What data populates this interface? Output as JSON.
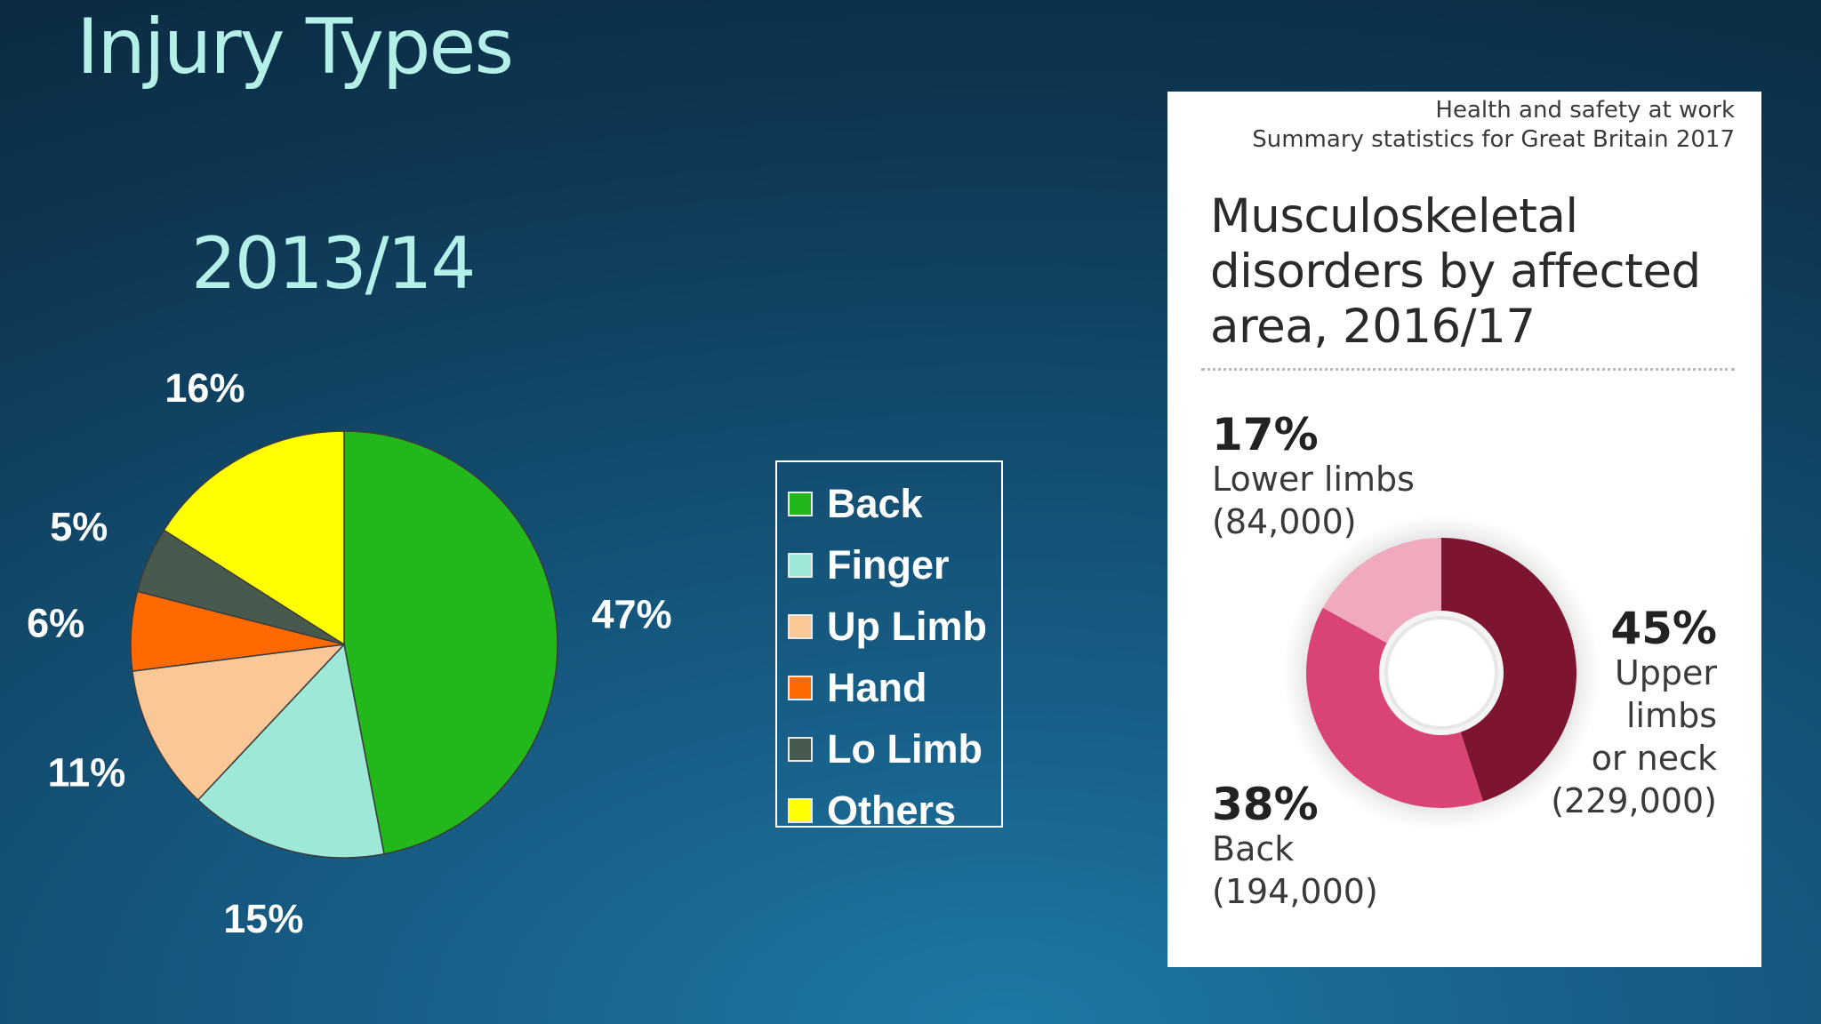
{
  "slide": {
    "title": "Injury Types"
  },
  "chart_data": [
    {
      "type": "pie",
      "title": "2013/14",
      "categories": [
        "Back",
        "Finger",
        "Up Limb",
        "Hand",
        "Lo Limb",
        "Others"
      ],
      "values": [
        47,
        15,
        11,
        6,
        5,
        16
      ],
      "value_labels": [
        "47%",
        "15%",
        "11%",
        "6%",
        "5%",
        "16%"
      ],
      "colors": [
        "#22b71a",
        "#9de8d6",
        "#fac796",
        "#ff6a00",
        "#485a4d",
        "#ffff00"
      ],
      "legend": "right"
    },
    {
      "type": "pie",
      "subtype": "donut",
      "source_lines": [
        "Health and safety at work",
        "Summary statistics for Great Britain 2017"
      ],
      "title": "Musculoskeletal disorders by affected area, 2016/17",
      "categories": [
        "Upper limbs or neck",
        "Back",
        "Lower limbs"
      ],
      "values": [
        45,
        38,
        17
      ],
      "counts": [
        229000,
        194000,
        84000
      ],
      "colors": [
        "#7d1530",
        "#d94474",
        "#f0aabe"
      ],
      "labels": [
        {
          "pct": "45%",
          "lines": [
            "Upper",
            "limbs",
            "or neck",
            "(229,000)"
          ]
        },
        {
          "pct": "38%",
          "lines": [
            "Back",
            "(194,000)"
          ]
        },
        {
          "pct": "17%",
          "lines": [
            "Lower limbs",
            "(84,000)"
          ]
        }
      ]
    }
  ]
}
